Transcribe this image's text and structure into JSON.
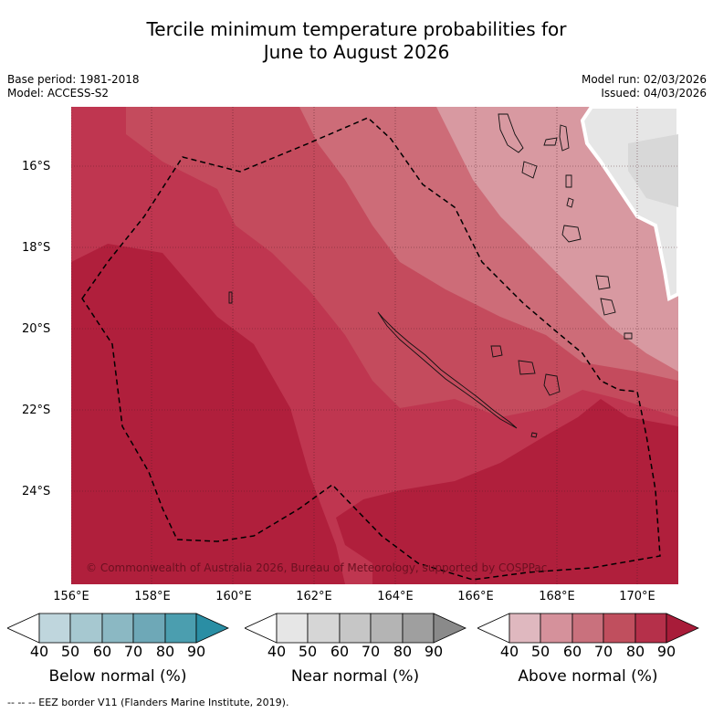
{
  "title": {
    "line1": "Tercile minimum temperature probabilities for",
    "line2": "June to August 2026"
  },
  "meta": {
    "base_period": "Base period: 1981-2018",
    "model": "Model: ACCESS-S2",
    "model_run": "Model run: 02/03/2026",
    "issued": "Issued: 04/03/2026"
  },
  "map": {
    "lat_labels": [
      "16°S",
      "18°S",
      "20°S",
      "22°S",
      "24°S"
    ],
    "lon_labels": [
      "156°E",
      "158°E",
      "160°E",
      "162°E",
      "164°E",
      "166°E",
      "168°E",
      "170°E"
    ],
    "credit": "© Commonwealth of Australia 2026, Bureau of Meteorology, supported by COSPPac",
    "dominant_category": "Above normal",
    "notes": "Above normal probabilities highest (80-90%) in west and south; decreasing to 50-60% in northeast; small near normal (40-50%) area in far northeast"
  },
  "colorbars": [
    {
      "label": "Below normal (%)",
      "ticks": [
        "40",
        "50",
        "60",
        "70",
        "80",
        "90"
      ],
      "colors": [
        "#ffffff",
        "#bfd6dd",
        "#a6c8d0",
        "#8bb8c3",
        "#6ea8b7",
        "#4b9eaf",
        "#2a8ea4"
      ]
    },
    {
      "label": "Near normal (%)",
      "ticks": [
        "40",
        "50",
        "60",
        "70",
        "80",
        "90"
      ],
      "colors": [
        "#ffffff",
        "#e6e6e6",
        "#d6d6d6",
        "#c6c6c6",
        "#b4b4b4",
        "#9f9f9f",
        "#8a8a8a"
      ]
    },
    {
      "label": "Above normal (%)",
      "ticks": [
        "40",
        "50",
        "60",
        "70",
        "80",
        "90"
      ],
      "colors": [
        "#ffffff",
        "#dfb8bf",
        "#d5919b",
        "#c9717d",
        "#c04f5e",
        "#b5304a",
        "#a81c39"
      ]
    }
  ],
  "footer": {
    "legend_text": "-- -- -- EEZ border V11 (Flanders Marine Institute, 2019)."
  }
}
